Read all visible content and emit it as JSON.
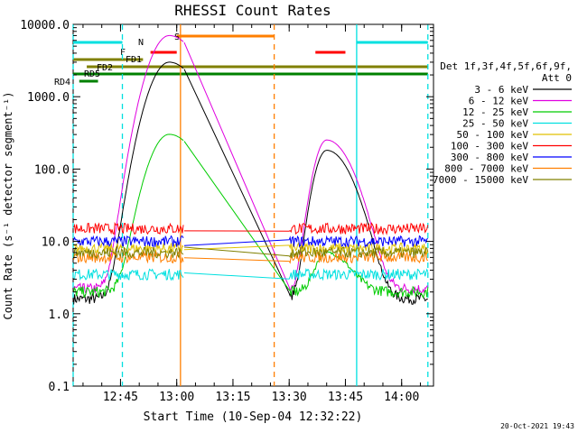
{
  "chart_data": {
    "type": "line",
    "title": "RHESSI Count Rates",
    "xlabel": "Start Time (10-Sep-04 12:32:22)",
    "ylabel": "Count Rate (s⁻¹ detector segment⁻¹)",
    "y_scale": "log",
    "ylim": [
      0.1,
      10000
    ],
    "xlim": [
      "12:32:22",
      "14:08:30"
    ],
    "x_ticks": [
      "12:45",
      "13:00",
      "13:15",
      "13:30",
      "13:45",
      "14:00"
    ],
    "y_ticks": [
      "0.1",
      "1.0",
      "10.0",
      "100.0",
      "1000.0",
      "10000.0"
    ],
    "legend_header": [
      "Det 1f,3f,4f,5f,6f,9f,",
      "Att 0"
    ],
    "legend_position": "right",
    "data_gap": [
      "13:02",
      "13:30"
    ],
    "series": [
      {
        "name": "3 - 6 keV",
        "color": "#000000",
        "baseline": 1.6,
        "flare1_peak": 3000,
        "flare2_peak": 180
      },
      {
        "name": "6 - 12 keV",
        "color": "#e000e0",
        "baseline": 2.2,
        "flare1_peak": 7000,
        "flare2_peak": 250
      },
      {
        "name": "12 - 25 keV",
        "color": "#00cc00",
        "baseline": 2.0,
        "flare1_peak": 300,
        "flare2_peak": 5
      },
      {
        "name": "25 - 50 keV",
        "color": "#00e0e0",
        "baseline": 3.5
      },
      {
        "name": "50 - 100 keV",
        "color": "#e0c000",
        "baseline": 8
      },
      {
        "name": "100 - 300 keV",
        "color": "#ff0000",
        "baseline": 15
      },
      {
        "name": "300 - 800 keV",
        "color": "#0000ff",
        "baseline": 10
      },
      {
        "name": "800 - 7000 keV",
        "color": "#ff7f00",
        "baseline": 6
      },
      {
        "name": "7000 - 15000 keV",
        "color": "#808000",
        "baseline": 7
      }
    ],
    "flag_bars": [
      {
        "label": "N",
        "color": "#00e0e0",
        "segments": [
          [
            "12:32:22",
            "12:45:30"
          ],
          [
            "13:48",
            "14:07"
          ]
        ]
      },
      {
        "label": "S",
        "color": "#ff7f00",
        "segments": [
          [
            "13:00",
            "13:26"
          ]
        ]
      },
      {
        "label": "F",
        "color": "#ff0000",
        "segments": [
          [
            "12:53",
            "13:00"
          ],
          [
            "13:37",
            "13:45"
          ]
        ]
      },
      {
        "label": "FD1",
        "color": "#808000",
        "segments": [
          [
            "12:32:22",
            "12:51"
          ]
        ]
      },
      {
        "label": "FD2",
        "color": "#808000",
        "segments": [
          [
            "12:36",
            "14:07"
          ]
        ]
      },
      {
        "label": "RD5",
        "color": "#008000",
        "segments": [
          [
            "12:32:22",
            "14:07"
          ]
        ]
      },
      {
        "label": "RD4",
        "color": "#008000",
        "segments": [
          [
            "12:34",
            "12:39"
          ]
        ]
      }
    ],
    "vertical_markers": [
      {
        "time": "12:32:22",
        "color": "#00e0e0",
        "style": "dashed"
      },
      {
        "time": "12:45:30",
        "color": "#00e0e0",
        "style": "dashed"
      },
      {
        "time": "13:01",
        "color": "#ff7f00",
        "style": "solid"
      },
      {
        "time": "13:26",
        "color": "#ff7f00",
        "style": "dashed"
      },
      {
        "time": "13:48",
        "color": "#00e0e0",
        "style": "solid"
      },
      {
        "time": "14:07",
        "color": "#00e0e0",
        "style": "dashed"
      }
    ]
  },
  "footer": {
    "timestamp": "20-Oct-2021 19:43"
  }
}
